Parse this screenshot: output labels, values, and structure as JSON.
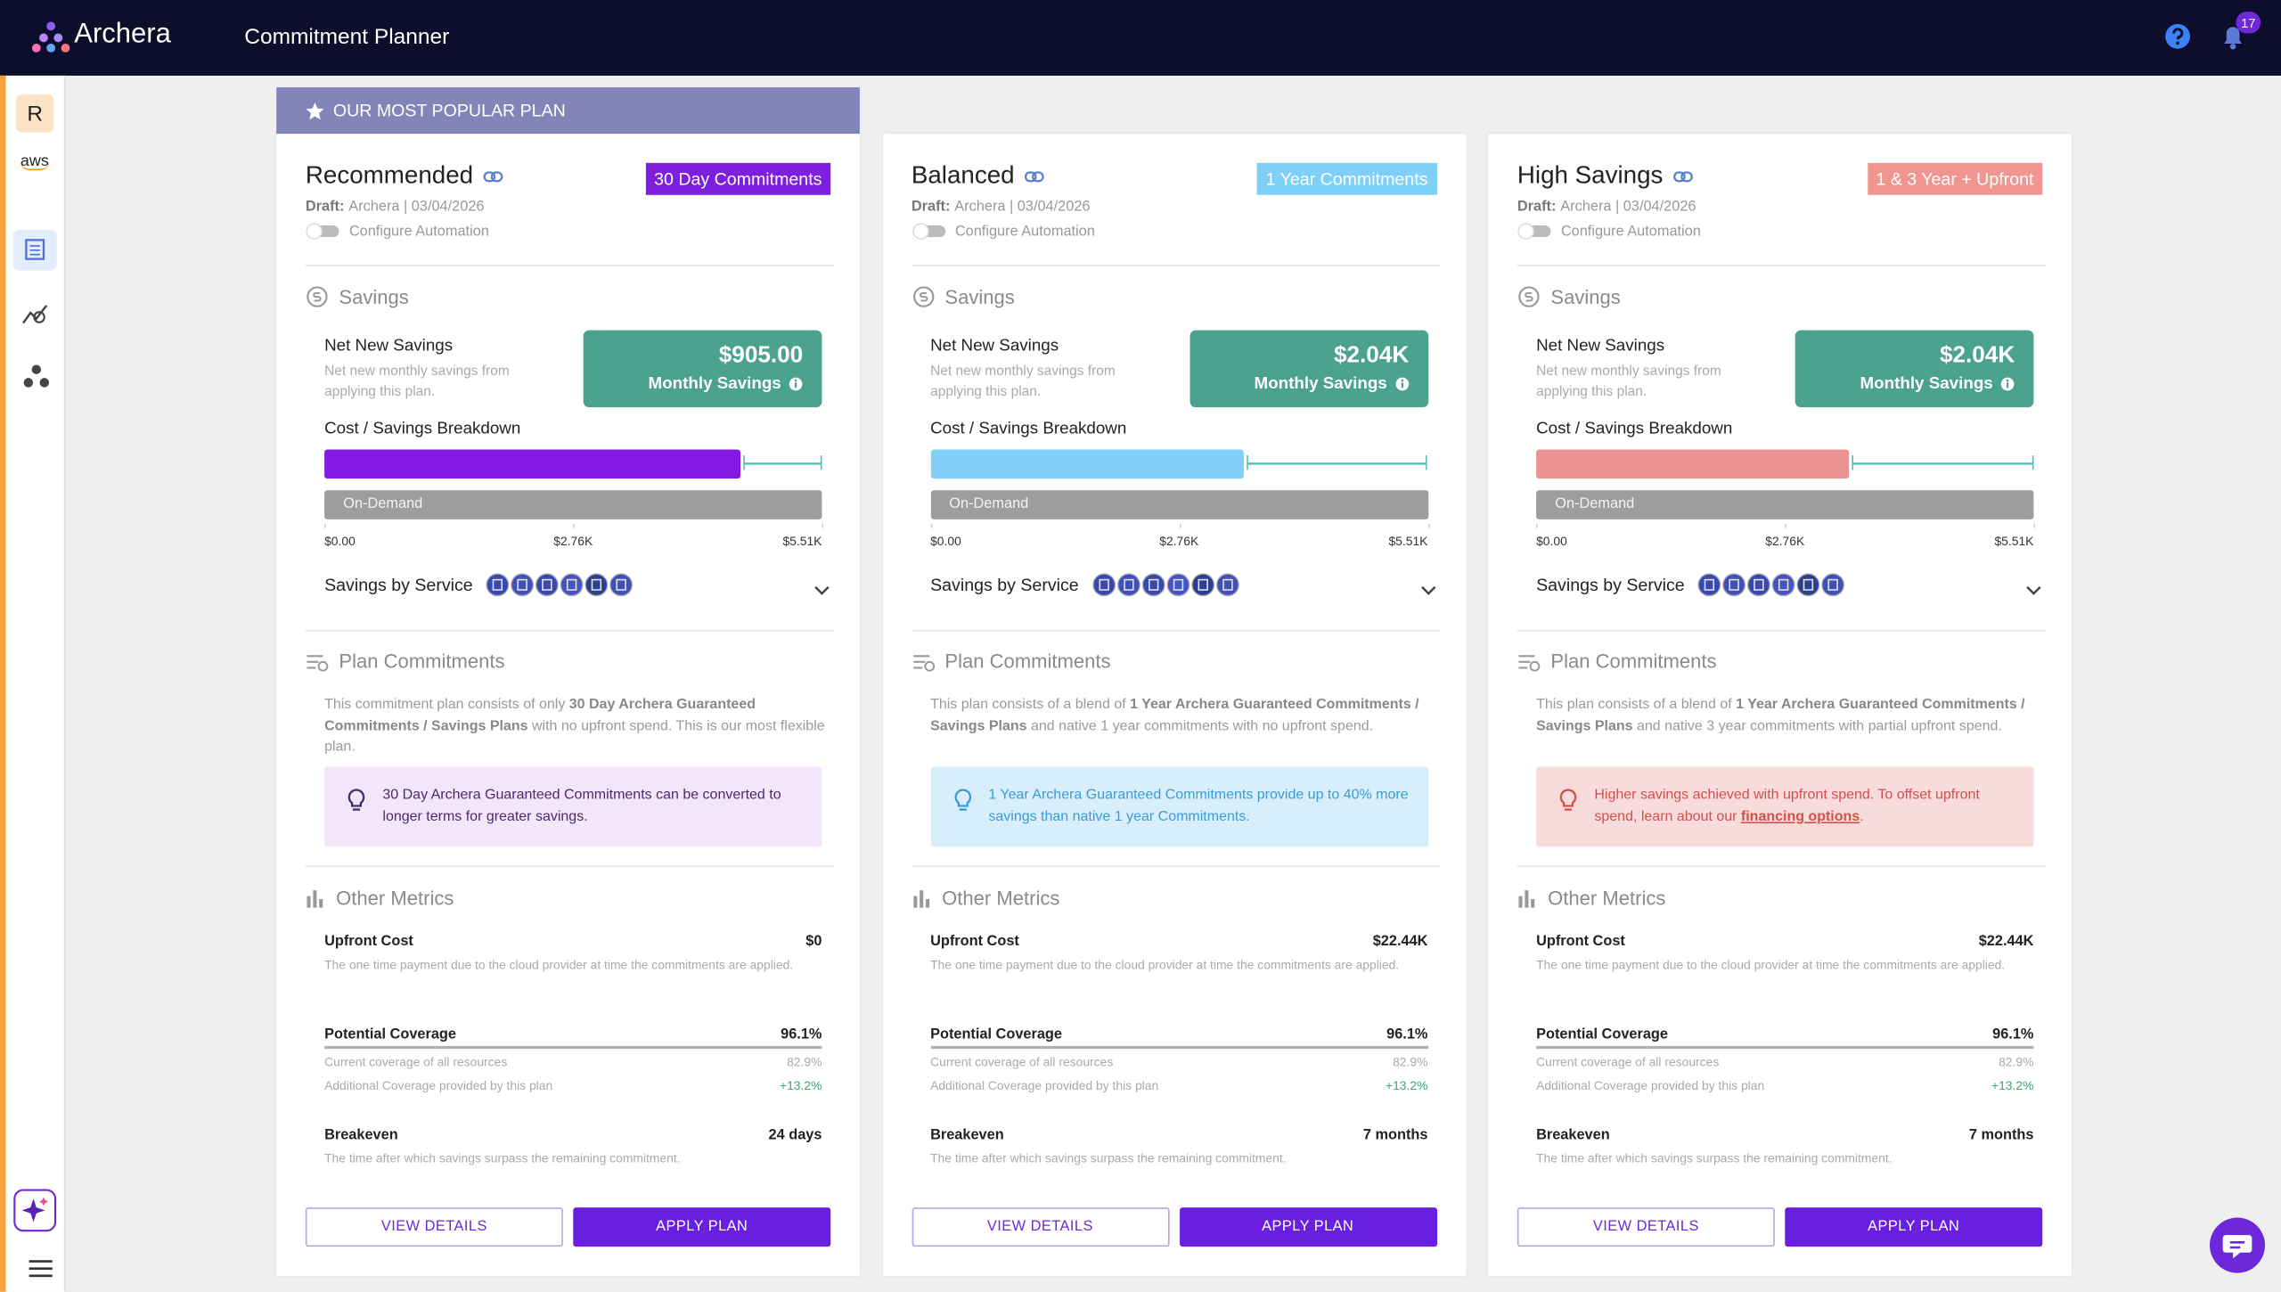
{
  "header": {
    "brand": "Archera",
    "title": "Commitment Planner",
    "notification_count": "17"
  },
  "sidebar": {
    "avatar": "R",
    "provider": "aws"
  },
  "banner": "OUR MOST POPULAR PLAN",
  "plans": [
    {
      "name": "Recommended",
      "tag": "30 Day Commitments",
      "color": "#8419e3",
      "tag_color": "#7e1fe0",
      "tip_bg": "#f3e6fb",
      "tip_fg": "#4a2a6a",
      "draft_label": "Draft:",
      "draft_info": "Archera | 03/04/2026",
      "automation": "Configure Automation",
      "savings_title": "Savings",
      "net_title": "Net New Savings",
      "net_desc": "Net new monthly savings from applying this plan.",
      "amount": "$905.00",
      "amount_label": "Monthly Savings",
      "breakdown_title": "Cost / Savings Breakdown",
      "on_demand": "On-Demand",
      "breakdown": {
        "commitment_cost": 4605,
        "on_demand_cost": 5510,
        "xlim": [
          0,
          5510
        ],
        "xticks": [
          {
            "value": 0,
            "label": "$0.00"
          },
          {
            "value": 2755,
            "label": "$2.76K"
          },
          {
            "value": 5510,
            "label": "$5.51K"
          }
        ]
      },
      "service_label": "Savings by Service",
      "commitments_title": "Plan Commitments",
      "commitments_text": [
        "This commitment plan consists of only ",
        {
          "bold": "30 Day Archera Guaranteed Commitments / Savings Plans"
        },
        " with no upfront spend. This is our most flexible plan."
      ],
      "tip": [
        "30 Day Archera Guaranteed Commitments can be converted to longer terms for greater savings."
      ],
      "metrics_title": "Other Metrics",
      "metrics": [
        {
          "label": "Upfront Cost",
          "value": "$0",
          "desc": "The one time payment due to the cloud provider at time the commitments are applied."
        },
        {
          "label": "Potential Coverage",
          "value": "96.1%",
          "sub": [
            {
              "label": "Current coverage of all resources",
              "value": "82.9%"
            },
            {
              "label": "Additional Coverage provided by this plan",
              "value": "+13.2%"
            }
          ]
        },
        {
          "label": "Breakeven",
          "value": "24 days",
          "desc": "The time after which savings surpass the remaining commitment."
        }
      ],
      "view_button": "VIEW DETAILS",
      "apply_button": "APPLY PLAN"
    },
    {
      "name": "Balanced",
      "tag": "1 Year Commitments",
      "color": "#80cff7",
      "tag_color": "#7fd0f8",
      "tip_bg": "#d9eefb",
      "tip_fg": "#3c9bd6",
      "draft_label": "Draft:",
      "draft_info": "Archera | 03/04/2026",
      "automation": "Configure Automation",
      "savings_title": "Savings",
      "net_title": "Net New Savings",
      "net_desc": "Net new monthly savings from applying this plan.",
      "amount": "$2.04K",
      "amount_label": "Monthly Savings",
      "breakdown_title": "Cost / Savings Breakdown",
      "on_demand": "On-Demand",
      "breakdown": {
        "commitment_cost": 3470,
        "on_demand_cost": 5510,
        "xlim": [
          0,
          5510
        ],
        "xticks": [
          {
            "value": 0,
            "label": "$0.00"
          },
          {
            "value": 2755,
            "label": "$2.76K"
          },
          {
            "value": 5510,
            "label": "$5.51K"
          }
        ]
      },
      "service_label": "Savings by Service",
      "commitments_title": "Plan Commitments",
      "commitments_text": [
        "This plan consists of a blend of ",
        {
          "bold": "1 Year Archera Guaranteed Commitments / Savings Plans"
        },
        " and native 1 year commitments with no upfront spend."
      ],
      "tip": [
        "1 Year Archera Guaranteed Commitments provide up to 40% more savings than native 1 year Commitments."
      ],
      "metrics_title": "Other Metrics",
      "metrics": [
        {
          "label": "Upfront Cost",
          "value": "$22.44K",
          "desc": "The one time payment due to the cloud provider at time the commitments are applied."
        },
        {
          "label": "Potential Coverage",
          "value": "96.1%",
          "sub": [
            {
              "label": "Current coverage of all resources",
              "value": "82.9%"
            },
            {
              "label": "Additional Coverage provided by this plan",
              "value": "+13.2%"
            }
          ]
        },
        {
          "label": "Breakeven",
          "value": "7 months",
          "desc": "The time after which savings surpass the remaining commitment."
        }
      ],
      "view_button": "VIEW DETAILS",
      "apply_button": "APPLY PLAN"
    },
    {
      "name": "High Savings",
      "tag": "1 & 3 Year + Upfront",
      "color": "#ea9292",
      "tag_color": "#f0958f",
      "tip_bg": "#f8dcdc",
      "tip_fg": "#d2504c",
      "draft_label": "Draft:",
      "draft_info": "Archera | 03/04/2026",
      "automation": "Configure Automation",
      "savings_title": "Savings",
      "net_title": "Net New Savings",
      "net_desc": "Net new monthly savings from applying this plan.",
      "amount": "$2.04K",
      "amount_label": "Monthly Savings",
      "breakdown_title": "Cost / Savings Breakdown",
      "on_demand": "On-Demand",
      "breakdown": {
        "commitment_cost": 3470,
        "on_demand_cost": 5510,
        "xlim": [
          0,
          5510
        ],
        "xticks": [
          {
            "value": 0,
            "label": "$0.00"
          },
          {
            "value": 2755,
            "label": "$2.76K"
          },
          {
            "value": 5510,
            "label": "$5.51K"
          }
        ]
      },
      "service_label": "Savings by Service",
      "commitments_title": "Plan Commitments",
      "commitments_text": [
        "This plan consists of a blend of ",
        {
          "bold": "1 Year Archera Guaranteed Commitments / Savings Plans"
        },
        " and native 3 year commitments with partial upfront spend."
      ],
      "tip": [
        "Higher savings achieved with upfront spend. To offset upfront spend, learn about our ",
        {
          "link": "financing options"
        },
        "."
      ],
      "metrics_title": "Other Metrics",
      "metrics": [
        {
          "label": "Upfront Cost",
          "value": "$22.44K",
          "desc": "The one time payment due to the cloud provider at time the commitments are applied."
        },
        {
          "label": "Potential Coverage",
          "value": "96.1%",
          "sub": [
            {
              "label": "Current coverage of all resources",
              "value": "82.9%"
            },
            {
              "label": "Additional Coverage provided by this plan",
              "value": "+13.2%"
            }
          ]
        },
        {
          "label": "Breakeven",
          "value": "7 months",
          "desc": "The time after which savings surpass the remaining commitment."
        }
      ],
      "view_button": "VIEW DETAILS",
      "apply_button": "APPLY PLAN"
    }
  ]
}
